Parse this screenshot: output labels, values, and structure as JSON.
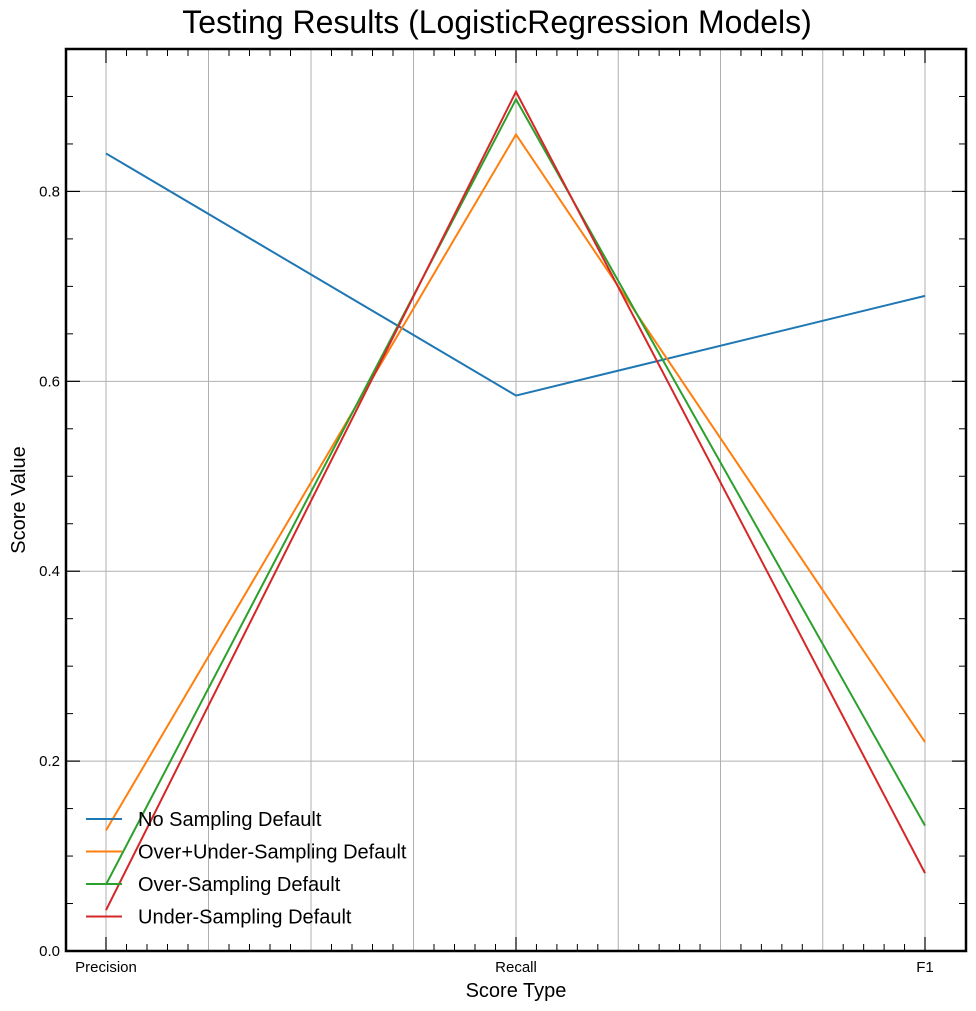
{
  "chart_data": {
    "type": "line",
    "title": "Testing Results (LogisticRegression Models)",
    "xlabel": "Score Type",
    "ylabel": "Score Value",
    "categories": [
      "Precision",
      "Recall",
      "F1"
    ],
    "ylim": [
      0.0,
      0.95
    ],
    "yticks": [
      0.0,
      0.2,
      0.4,
      0.6,
      0.8
    ],
    "ytick_labels": [
      "0.0",
      "0.2",
      "0.4",
      "0.6",
      "0.8"
    ],
    "grid": true,
    "legend_position": "lower-left",
    "series": [
      {
        "name": "No Sampling Default",
        "color": "#1f77b4",
        "values": [
          0.84,
          0.585,
          0.69
        ]
      },
      {
        "name": "Over+Under-Sampling Default",
        "color": "#ff7f0e",
        "values": [
          0.127,
          0.86,
          0.22
        ]
      },
      {
        "name": "Over-Sampling Default",
        "color": "#2ca02c",
        "values": [
          0.07,
          0.897,
          0.132
        ]
      },
      {
        "name": "Under-Sampling Default",
        "color": "#d62728",
        "values": [
          0.043,
          0.905,
          0.082
        ]
      }
    ]
  }
}
